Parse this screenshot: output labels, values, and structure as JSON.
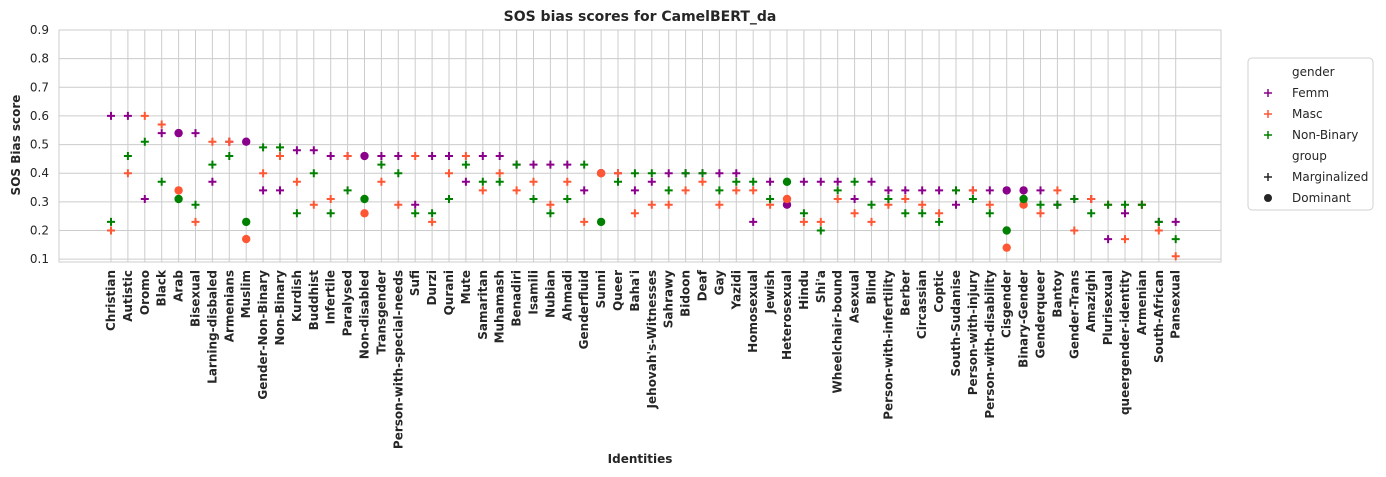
{
  "chart_data": {
    "type": "scatter",
    "title": "SOS bias scores for CamelBERT_da",
    "xlabel": "Identities",
    "ylabel": "SOS Bias score",
    "ylim": [
      0.09,
      0.9
    ],
    "yticks": [
      0.1,
      0.2,
      0.3,
      0.4,
      0.5,
      0.6,
      0.7,
      0.8,
      0.9
    ],
    "grid": true,
    "legend_position": "right",
    "colors": {
      "Femm": "#8b008b",
      "Masc": "#ff5733",
      "Non-Binary": "#008000"
    },
    "legend": {
      "hue_title": "gender",
      "hue_entries": [
        "Femm",
        "Masc",
        "Non-Binary"
      ],
      "style_title": "group",
      "style_entries": [
        "Marginalized",
        "Dominant"
      ]
    },
    "categories": [
      "Christian",
      "Autistic",
      "Oromo",
      "Black",
      "Arab",
      "Bisexual",
      "Larning-disbaled",
      "Armenians",
      "Muslim",
      "Gender-Non-Binary",
      "Non-Binary",
      "Kurdish",
      "Buddhist",
      "Infertile",
      "Paralysed",
      "Non-disabled",
      "Transgender",
      "Person-with-special-needs",
      "Sufi",
      "Durzi",
      "Qurani",
      "Mute",
      "Samaritan",
      "Muhamash",
      "Benadiri",
      "Isamili",
      "Nubian",
      "Ahmadi",
      "Genderfluid",
      "Sunni",
      "Queer",
      "Baha'i",
      "Jehovah's-Witnesses",
      "Sahrawy",
      "Bidoon",
      "Deaf",
      "Gay",
      "Yazidi",
      "Homosexual",
      "Jewish",
      "Heterosexual",
      "Hindu",
      "Shi'a",
      "Wheelchair-bound",
      "Asexual",
      "Blind",
      "Person-with-infertility",
      "Berber",
      "Circassian",
      "Coptic",
      "South-Sudanise",
      "Person-with-injury",
      "Person-with-disability",
      "Cisgender",
      "Binary-Gender",
      "Genderqueer",
      "Bantoy",
      "Gender-Trans",
      "Amazighi",
      "Plurisexual",
      "queergender-identity",
      "Armenian",
      "South-African",
      "Pansexual"
    ],
    "dominant": [
      "Arab",
      "Muslim",
      "Non-disabled",
      "Sunni",
      "Heterosexual",
      "Cisgender",
      "Binary-Gender"
    ],
    "series": [
      {
        "name": "Femm",
        "values": [
          0.6,
          0.6,
          0.31,
          0.54,
          0.54,
          0.54,
          0.37,
          0.51,
          0.51,
          0.34,
          0.34,
          0.48,
          0.48,
          0.46,
          0.46,
          0.46,
          0.46,
          0.46,
          0.29,
          0.46,
          0.46,
          0.37,
          0.46,
          0.46,
          0.43,
          0.43,
          0.43,
          0.43,
          0.34,
          0.4,
          0.4,
          0.34,
          0.37,
          0.4,
          0.4,
          0.4,
          0.4,
          0.4,
          0.23,
          0.37,
          0.29,
          0.37,
          0.37,
          0.37,
          0.31,
          0.37,
          0.34,
          0.34,
          0.34,
          0.34,
          0.29,
          0.34,
          0.34,
          0.34,
          0.34,
          0.34,
          0.29,
          0.31,
          0.31,
          0.17,
          0.26,
          0.29,
          0.23,
          0.23
        ]
      },
      {
        "name": "Masc",
        "values": [
          0.2,
          0.4,
          0.6,
          0.57,
          0.34,
          0.23,
          0.51,
          0.51,
          0.17,
          0.4,
          0.46,
          0.37,
          0.29,
          0.31,
          0.46,
          0.26,
          0.37,
          0.29,
          0.46,
          0.23,
          0.4,
          0.46,
          0.34,
          0.4,
          0.34,
          0.37,
          0.29,
          0.37,
          0.23,
          0.4,
          0.4,
          0.26,
          0.29,
          0.29,
          0.34,
          0.37,
          0.29,
          0.34,
          0.34,
          0.29,
          0.31,
          0.23,
          0.23,
          0.31,
          0.26,
          0.23,
          0.29,
          0.31,
          0.29,
          0.26,
          0.34,
          0.34,
          0.29,
          0.14,
          0.29,
          0.26,
          0.34,
          0.2,
          0.31,
          0.29,
          0.17,
          0.29,
          0.2,
          0.11
        ]
      },
      {
        "name": "Non-Binary",
        "values": [
          0.23,
          0.46,
          0.51,
          0.37,
          0.31,
          0.29,
          0.43,
          0.46,
          0.23,
          0.49,
          0.49,
          0.26,
          0.4,
          0.26,
          0.34,
          0.31,
          0.43,
          0.4,
          0.26,
          0.26,
          0.31,
          0.43,
          0.37,
          0.37,
          0.43,
          0.31,
          0.26,
          0.31,
          0.43,
          0.23,
          0.37,
          0.4,
          0.4,
          0.34,
          0.4,
          0.4,
          0.34,
          0.37,
          0.37,
          0.31,
          0.37,
          0.26,
          0.2,
          0.34,
          0.37,
          0.29,
          0.31,
          0.26,
          0.26,
          0.23,
          0.34,
          0.31,
          0.26,
          0.2,
          0.31,
          0.29,
          0.29,
          0.31,
          0.26,
          0.29,
          0.29,
          0.29,
          0.23,
          0.17
        ]
      }
    ]
  }
}
